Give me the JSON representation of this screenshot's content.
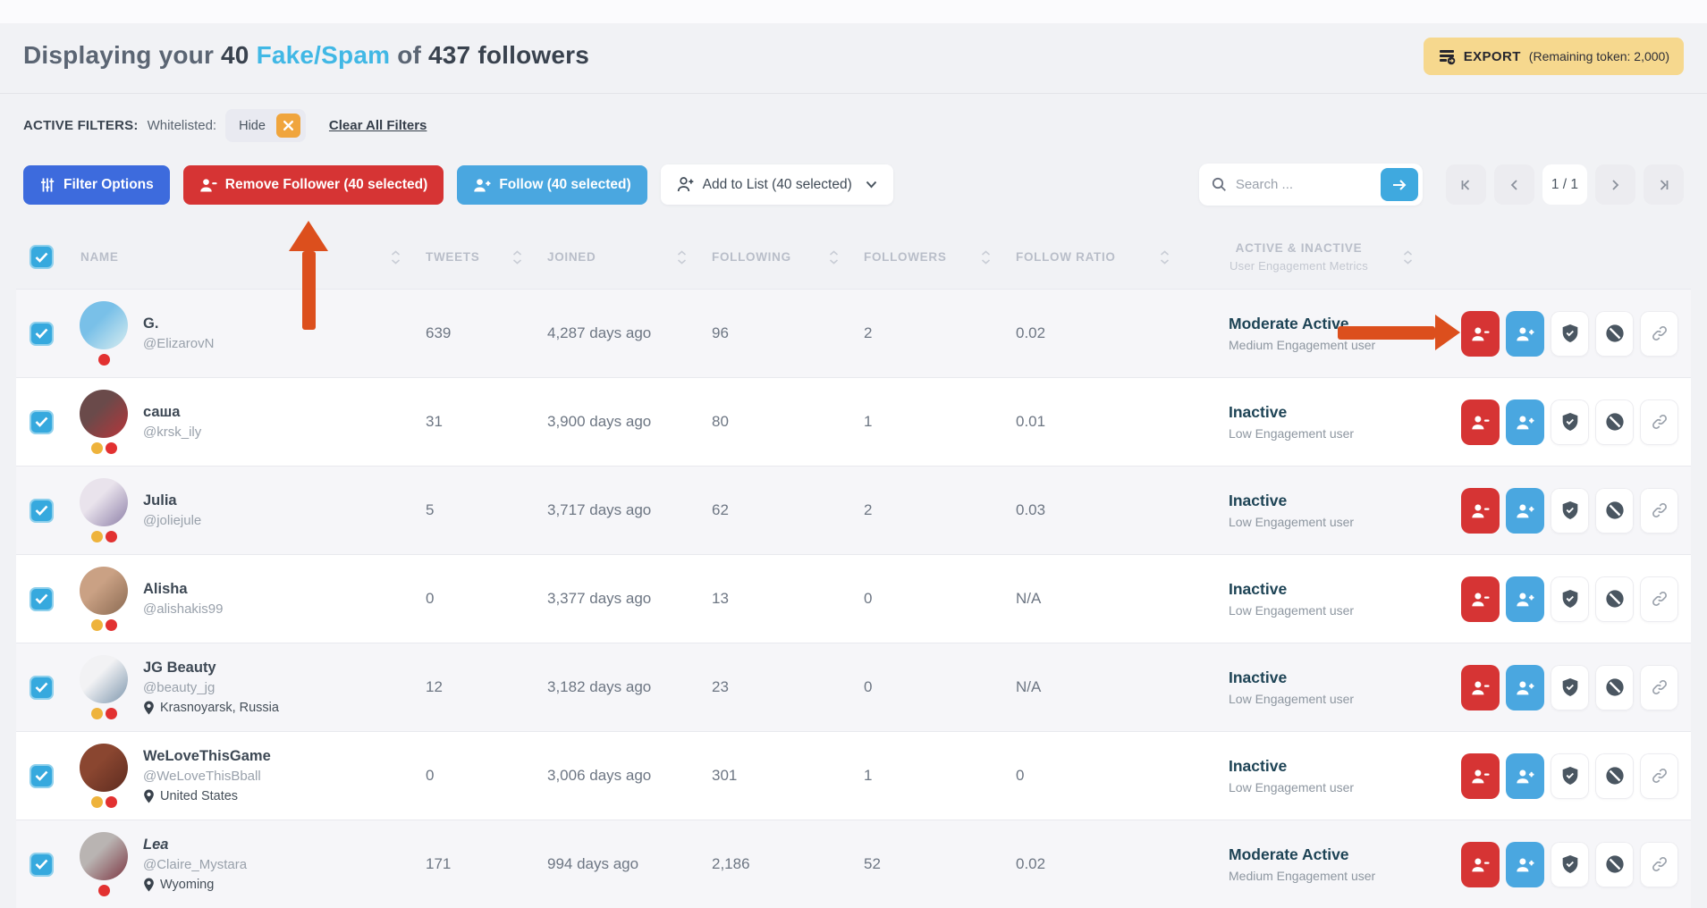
{
  "colors": {
    "accent_blue": "#41b8e5",
    "primary_blue": "#3d6bdd",
    "sky_blue": "#4aa7e0",
    "red": "#d63434",
    "amber": "#f6d88e",
    "annotation_arrow": "#dc4f1d",
    "status_dark": "#1d4355",
    "dot_red": "#e23131",
    "dot_yellow": "#eeb33c"
  },
  "header": {
    "title_prefix": "Displaying your",
    "count": "40",
    "highlight": "Fake/Spam",
    "connector": "of",
    "total": "437",
    "suffix": "followers",
    "export_label": "EXPORT",
    "export_note": "(Remaining token: 2,000)"
  },
  "filters": {
    "label": "ACTIVE FILTERS:",
    "field": "Whitelisted:",
    "chip": "Hide",
    "clear": "Clear All Filters"
  },
  "toolbar": {
    "filter_options": "Filter Options",
    "remove_follower": "Remove Follower (40 selected)",
    "follow": "Follow (40 selected)",
    "add_to_list": "Add to List (40 selected)",
    "search_placeholder": "Search ...",
    "page": "1 / 1"
  },
  "table": {
    "columns": [
      "NAME",
      "TWEETS",
      "JOINED",
      "FOLLOWING",
      "FOLLOWERS",
      "FOLLOW RATIO"
    ],
    "status_col": {
      "title": "ACTIVE & INACTIVE",
      "subtitle": "User Engagement Metrics"
    },
    "action_icons": [
      "remove-follower",
      "follow",
      "whitelist-shield",
      "block-ban",
      "copy-link"
    ],
    "rows": [
      {
        "name": "G.",
        "handle": "@ElizarovN",
        "location": "",
        "dots": [
          "red"
        ],
        "tweets": "639",
        "joined": "4,287 days ago",
        "following": "96",
        "followers": "2",
        "ratio": "0.02",
        "status": "Moderate Active",
        "engagement": "Medium Engagement user",
        "italic": false,
        "shade": "gray",
        "avatar": [
          "#79c0e8",
          "#d9edf0"
        ]
      },
      {
        "name": "саша",
        "handle": "@krsk_ily",
        "location": "",
        "dots": [
          "yellow",
          "red"
        ],
        "tweets": "31",
        "joined": "3,900 days ago",
        "following": "80",
        "followers": "1",
        "ratio": "0.01",
        "status": "Inactive",
        "engagement": "Low Engagement user",
        "italic": false,
        "shade": "white",
        "avatar": [
          "#6a4a4a",
          "#b8353a"
        ]
      },
      {
        "name": "Julia",
        "handle": "@joliejule",
        "location": "",
        "dots": [
          "yellow",
          "red"
        ],
        "tweets": "5",
        "joined": "3,717 days ago",
        "following": "62",
        "followers": "2",
        "ratio": "0.03",
        "status": "Inactive",
        "engagement": "Low Engagement user",
        "italic": false,
        "shade": "gray",
        "avatar": [
          "#e9e3ec",
          "#8d7fa8"
        ]
      },
      {
        "name": "Alisha",
        "handle": "@alishakis99",
        "location": "",
        "dots": [
          "yellow",
          "red"
        ],
        "tweets": "0",
        "joined": "3,377 days ago",
        "following": "13",
        "followers": "0",
        "ratio": "N/A",
        "status": "Inactive",
        "engagement": "Low Engagement user",
        "italic": false,
        "shade": "white",
        "avatar": [
          "#caa184",
          "#8a6a52"
        ]
      },
      {
        "name": "JG Beauty",
        "handle": "@beauty_jg",
        "location": "Krasnoyarsk, Russia",
        "dots": [
          "yellow",
          "red"
        ],
        "tweets": "12",
        "joined": "3,182 days ago",
        "following": "23",
        "followers": "0",
        "ratio": "N/A",
        "status": "Inactive",
        "engagement": "Low Engagement user",
        "italic": false,
        "shade": "gray",
        "avatar": [
          "#f2f2f4",
          "#7d96ad"
        ]
      },
      {
        "name": "WeLoveThisGame",
        "handle": "@WeLoveThisBball",
        "location": "United States",
        "dots": [
          "yellow",
          "red"
        ],
        "tweets": "0",
        "joined": "3,006 days ago",
        "following": "301",
        "followers": "1",
        "ratio": "0",
        "status": "Inactive",
        "engagement": "Low Engagement user",
        "italic": false,
        "shade": "white",
        "avatar": [
          "#8a4630",
          "#5e2c20"
        ]
      },
      {
        "name": "Lea",
        "handle": "@Claire_Mystara",
        "location": "Wyoming",
        "dots": [
          "red"
        ],
        "tweets": "171",
        "joined": "994 days ago",
        "following": "2,186",
        "followers": "52",
        "ratio": "0.02",
        "status": "Moderate Active",
        "engagement": "Medium Engagement user",
        "italic": true,
        "shade": "gray",
        "avatar": [
          "#b9b4b2",
          "#7c3642"
        ]
      }
    ]
  }
}
